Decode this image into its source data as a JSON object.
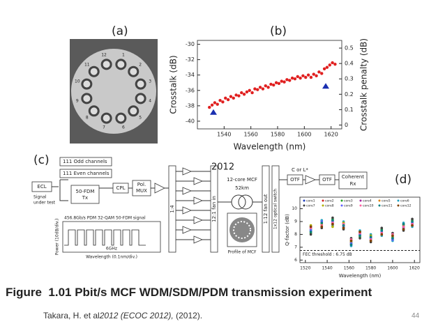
{
  "panel_a": {
    "label": "(a)",
    "core_labels": [
      "1",
      "2",
      "3",
      "4",
      "5",
      "6",
      "7",
      "8",
      "9",
      "10",
      "11",
      "12"
    ]
  },
  "chart_data": [
    {
      "type": "scatter",
      "label": "(b)",
      "x_label": "Wavelength (nm)",
      "y_label": "Crosstalk (dB)",
      "y2_label": "Crosstalk penalty (dB)",
      "xlim": [
        1520,
        1628
      ],
      "xticks": [
        1540,
        1560,
        1580,
        1600,
        1620
      ],
      "ylim": [
        -41,
        -29.5
      ],
      "yticks": [
        -40,
        -38,
        -36,
        -34,
        -32,
        -30
      ],
      "y2lim": [
        -0.025,
        0.55
      ],
      "y2ticks": [
        0,
        0.1,
        0.2,
        0.3,
        0.4,
        0.5
      ],
      "series": [
        {
          "color": "#e02020",
          "marker": "circle",
          "x": [
            1529,
            1531,
            1533,
            1535,
            1537,
            1539,
            1541,
            1543,
            1545,
            1547,
            1549,
            1551,
            1553,
            1555,
            1557,
            1559,
            1561,
            1563,
            1565,
            1567,
            1569,
            1571,
            1573,
            1575,
            1577,
            1579,
            1581,
            1583,
            1585,
            1587,
            1589,
            1591,
            1593,
            1595,
            1597,
            1599,
            1601,
            1603,
            1605,
            1607,
            1609,
            1611,
            1613,
            1615,
            1617,
            1619,
            1621,
            1623
          ],
          "values": [
            -38.2,
            -37.9,
            -37.6,
            -37.8,
            -37.3,
            -37.5,
            -37.0,
            -37.2,
            -36.8,
            -37.0,
            -36.6,
            -36.7,
            -36.3,
            -36.5,
            -36.2,
            -36.0,
            -36.3,
            -35.8,
            -35.9,
            -35.6,
            -35.8,
            -35.4,
            -35.6,
            -35.2,
            -35.3,
            -35.0,
            -35.1,
            -34.8,
            -34.9,
            -34.6,
            -34.7,
            -34.4,
            -34.5,
            -34.2,
            -34.4,
            -34.1,
            -34.3,
            -34.0,
            -34.3,
            -33.9,
            -34.1,
            -33.6,
            -33.8,
            -33.2,
            -33.0,
            -32.7,
            -32.4,
            -32.6
          ]
        },
        {
          "color": "#1a2fb0",
          "marker": "triangle",
          "axis": "y2",
          "x": [
            1532,
            1616
          ],
          "values": [
            0.08,
            0.25
          ]
        }
      ]
    },
    {
      "type": "scatter",
      "label": "(d)",
      "x_label": "Wavelength (nm)",
      "y_label": "Q-factor (dB)",
      "xlim": [
        1515,
        1625
      ],
      "xticks": [
        1520,
        1540,
        1560,
        1580,
        1600,
        1620
      ],
      "ylim": [
        5.8,
        10.9
      ],
      "yticks": [
        6,
        7,
        8,
        9,
        10
      ],
      "threshold": {
        "label": "FEC threshold : 6.75 dB",
        "value": 6.75
      },
      "x": [
        1525,
        1535,
        1545,
        1555,
        1562,
        1570,
        1580,
        1590,
        1600,
        1610,
        1618
      ],
      "series": [
        {
          "name": "core1",
          "color": "#1f3fbf",
          "values": [
            8.3,
            8.8,
            9.0,
            8.7,
            7.4,
            8.0,
            7.7,
            8.2,
            7.8,
            8.6,
            8.9
          ]
        },
        {
          "name": "core2",
          "color": "#d02020",
          "values": [
            8.5,
            9.0,
            8.8,
            8.9,
            7.2,
            8.2,
            7.9,
            8.0,
            7.6,
            8.8,
            8.7
          ]
        },
        {
          "name": "core3",
          "color": "#20a020",
          "values": [
            8.1,
            8.6,
            9.2,
            8.5,
            7.6,
            7.8,
            7.5,
            8.4,
            8.0,
            8.4,
            9.1
          ]
        },
        {
          "name": "core4",
          "color": "#a020a0",
          "values": [
            8.6,
            8.9,
            8.9,
            8.8,
            7.3,
            8.1,
            7.8,
            8.1,
            7.7,
            8.7,
            8.8
          ]
        },
        {
          "name": "core5",
          "color": "#e08000",
          "values": [
            8.2,
            8.7,
            9.1,
            8.6,
            7.5,
            7.9,
            7.6,
            8.3,
            7.9,
            8.5,
            9.0
          ]
        },
        {
          "name": "core6",
          "color": "#20a0c0",
          "values": [
            8.4,
            9.1,
            8.7,
            9.0,
            7.1,
            8.3,
            8.0,
            7.9,
            7.5,
            8.9,
            8.6
          ]
        },
        {
          "name": "core7",
          "color": "#404040",
          "values": [
            8.0,
            8.5,
            9.3,
            8.4,
            7.7,
            7.7,
            7.4,
            8.5,
            8.1,
            8.3,
            9.2
          ]
        },
        {
          "name": "core8",
          "color": "#b0b000",
          "values": [
            8.7,
            8.8,
            8.6,
            8.9,
            7.4,
            8.2,
            7.9,
            8.0,
            7.8,
            8.7,
            8.7
          ]
        },
        {
          "name": "core9",
          "color": "#6060ff",
          "values": [
            8.3,
            9.0,
            9.0,
            8.6,
            7.3,
            8.0,
            7.7,
            8.2,
            7.6,
            8.5,
            8.9
          ]
        },
        {
          "name": "core10",
          "color": "#ff60a0",
          "values": [
            8.5,
            8.7,
            8.9,
            8.8,
            7.6,
            8.1,
            7.6,
            8.1,
            8.0,
            8.6,
            8.8
          ]
        },
        {
          "name": "core11",
          "color": "#008080",
          "values": [
            8.2,
            8.9,
            9.1,
            8.7,
            7.2,
            7.9,
            7.8,
            8.3,
            7.7,
            8.8,
            9.0
          ]
        },
        {
          "name": "core12",
          "color": "#804000",
          "values": [
            8.6,
            8.6,
            8.8,
            8.5,
            7.5,
            8.2,
            7.5,
            8.0,
            7.9,
            8.4,
            8.7
          ]
        }
      ]
    }
  ],
  "diagram_c": {
    "label": "(c)",
    "odd_channels": "111 Odd channels",
    "even_channels": "111 Even channels",
    "ecl": "ECL",
    "signal_under_test": [
      "Signal",
      "under test"
    ],
    "fdm_tx": [
      "50-FDM",
      "Tx"
    ],
    "cpl": "CPL",
    "pol_mux": [
      "Pol.",
      "MUX"
    ],
    "spectrum_title": "456.8Gb/s PDM 32-QAM 50-FDM signal",
    "spectrum_scale": "6GHz",
    "spectrum_xlabel": "Wavelength (0.1nm/div.)",
    "spectrum_ylabel": "Power (10dB/div.)",
    "splitter": "1:4",
    "fan_in": "12:1 fan in",
    "mcf": "12-core MCF",
    "length": "52km",
    "profile": "Profile of MCF",
    "fan_out": "1:12 fan out",
    "switch": "1x12 optical switch",
    "band": "C or L*",
    "otf": "OTF",
    "coherent_rx": [
      "Coherent",
      "Rx"
    ]
  },
  "overlay_year": "2012",
  "caption": {
    "title": "Figure  1.01 Pbit/s MCF WDM/SDM/PDM transmission experiment",
    "citation_authors": "Takara, H. et al",
    "citation_venue": "2012 (ECOC 2012),",
    "citation_year": " (2012)."
  },
  "page_number": "44"
}
